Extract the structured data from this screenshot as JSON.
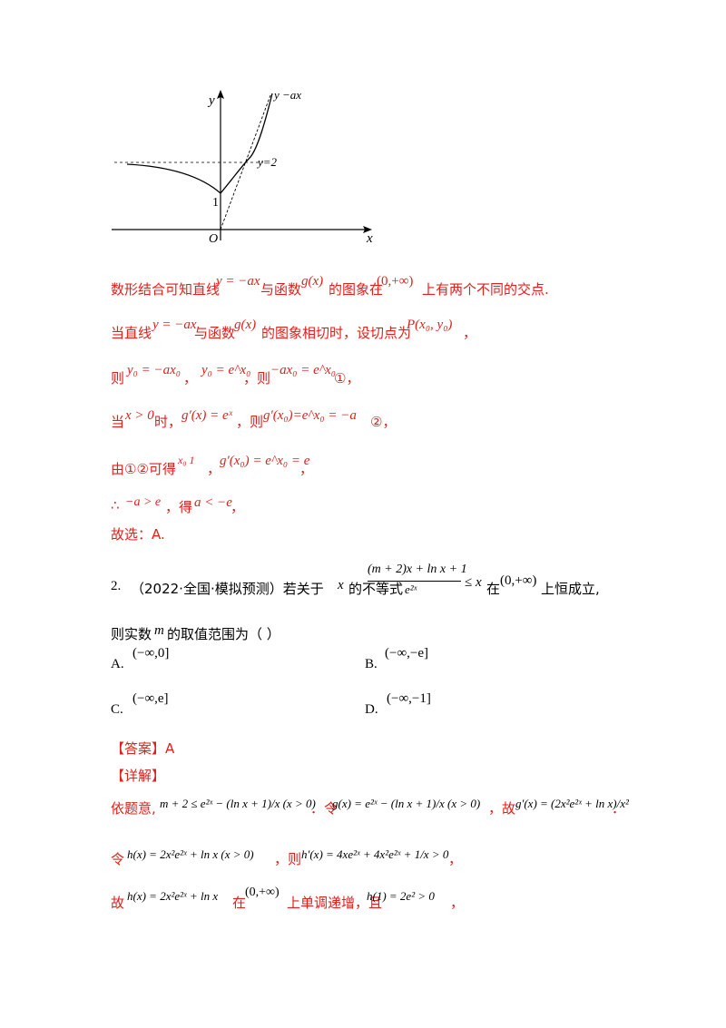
{
  "graph": {
    "y_axis_label": "y",
    "x_axis_label": "x",
    "origin_label": "O",
    "one_label": "1",
    "line_label": "y −ax",
    "y2_label": "y=2"
  },
  "sol1": {
    "l1_a": "数形结合可知直线",
    "l1_m1": "y = −ax",
    "l1_b": "与函数",
    "l1_m2": "g(x)",
    "l1_c": "的图象在",
    "l1_m3": "(0,+∞)",
    "l1_d": "上有两个不同的交点.",
    "l2_a": "当直线",
    "l2_m1": "y = −ax",
    "l2_b": "与函数",
    "l2_m2": "g(x)",
    "l2_c": "的图象相切时，设切点为",
    "l2_m3": "P(x₀, y₀)",
    "l2_d": "，",
    "l3_a": "则",
    "l3_m1": "y₀ = −ax₀",
    "l3_b": "，",
    "l3_m2": "y₀ = e^x₀",
    "l3_c": "，则",
    "l3_m3": "−ax₀ = e^x₀",
    "l3_d": "①，",
    "l4_a": "当",
    "l4_m1": "x > 0",
    "l4_b": "时，",
    "l4_m2": "g′(x) = eˣ",
    "l4_c": "，则",
    "l4_m3": "g′(x₀)=e^x₀ = −a",
    "l4_d": "②，",
    "l5_a": "由①②可得",
    "l5_m1": "x₀   1",
    "l5_b": "，",
    "l5_m2": "g′(x₀) = e^x₀ = e",
    "l5_c": "，",
    "l6_a": "∴",
    "l6_m1": "−a > e",
    "l6_b": "，得",
    "l6_m2": "a < −e",
    "l6_c": "，",
    "l7": "故选：A."
  },
  "q2": {
    "number": "2.",
    "source": "（2022·全国·模拟预测）若关于",
    "var_x": "x",
    "stem_b": "的不等式",
    "frac_num": "(m + 2)x + ln x + 1",
    "frac_den": "e²ˣ",
    "ineq_tail": "≤ x",
    "stem_c": "在",
    "interval": "(0,+∞)",
    "stem_d": "上恒成立,",
    "line2_a": "则实数",
    "var_m": "m",
    "line2_b": "的取值范围为（      ）",
    "options": [
      {
        "label": "A.",
        "value": "(−∞,0]"
      },
      {
        "label": "B.",
        "value": "(−∞,−e]"
      },
      {
        "label": "C.",
        "value": "(−∞,e]"
      },
      {
        "label": "D.",
        "value": "(−∞,−1]"
      }
    ]
  },
  "answer": {
    "answer_label": "【答案】A",
    "detail_label": "【详解】",
    "d1_a": "依题意,",
    "d1_m1": "m + 2 ≤ e²ˣ − (ln x + 1)/x (x > 0)",
    "d1_b": "．令",
    "d1_m2": "g(x) = e²ˣ − (ln x + 1)/x (x > 0)",
    "d1_c": "，故",
    "d1_m3": "g′(x) = (2x²e²ˣ + ln x)/x²",
    "d1_d": "．",
    "d2_a": "令",
    "d2_m1": "h(x) = 2x²e²ˣ + ln x (x > 0)",
    "d2_b": "，则",
    "d2_m2": "h′(x) = 4xe²ˣ + 4x²e²ˣ + 1/x > 0",
    "d2_c": "，",
    "d3_a": "故",
    "d3_m1": "h(x) = 2x²e²ˣ + ln x",
    "d3_b": "在",
    "d3_m2": "(0,+∞)",
    "d3_c": "上单调递增，且",
    "d3_m3": "h(1) = 2e² > 0",
    "d3_d": "，"
  }
}
